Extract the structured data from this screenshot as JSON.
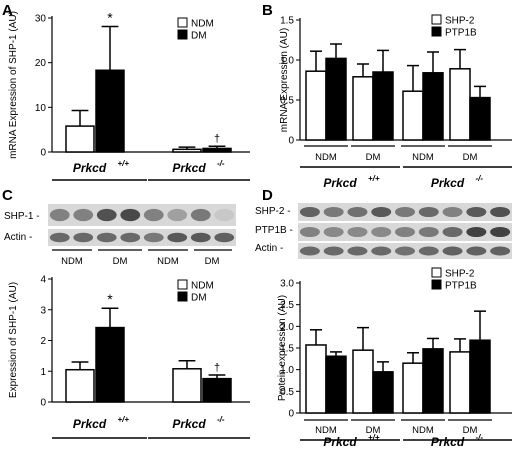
{
  "colors": {
    "ndm": "#ffffff",
    "dm": "#000000",
    "axis": "#000000",
    "blot_bg": "#d8d8d8",
    "band": "#3a3a3a"
  },
  "panel_labels": [
    "A",
    "B",
    "C",
    "D"
  ],
  "genotypes": {
    "wt": "Prkcd",
    "wt_sup": "+/+",
    "ko": "Prkcd",
    "ko_sup": "-/-"
  },
  "blot_C": {
    "rows": [
      "SHP-1 -",
      "Actin -"
    ],
    "lanes": [
      "NDM",
      "DM",
      "NDM",
      "DM"
    ]
  },
  "blot_D": {
    "rows": [
      "SHP-2 -",
      "PTP1B -",
      "Actin -"
    ]
  },
  "chart_data": [
    {
      "panel": "A",
      "type": "bar",
      "ylabel": "mRNA Expression of SHP-1 (AU)",
      "ylim": [
        0,
        30
      ],
      "yticks": [
        "0",
        "10",
        "20",
        "30"
      ],
      "legend": [
        "NDM",
        "DM"
      ],
      "legend_position": "top-right",
      "groups": [
        "Prkcd +/+",
        "Prkcd -/-"
      ],
      "series": [
        {
          "name": "NDM",
          "values": [
            5.8,
            0.6
          ],
          "errors": [
            3.5,
            0.5
          ]
        },
        {
          "name": "DM",
          "values": [
            18.3,
            0.8
          ],
          "errors": [
            9.8,
            0.5
          ]
        }
      ],
      "annotations": [
        {
          "text": "*",
          "group": 0,
          "series": 1
        },
        {
          "text": "†",
          "group": 1,
          "series": 1
        }
      ]
    },
    {
      "panel": "B",
      "type": "bar",
      "ylabel": "mRNA Expression (AU)",
      "ylim": [
        0,
        1.5
      ],
      "yticks": [
        "0",
        "0.5",
        "1.0",
        "1.5"
      ],
      "legend": [
        "SHP-2",
        "PTP1B"
      ],
      "legend_position": "top-right",
      "categories": [
        "NDM",
        "DM",
        "NDM",
        "DM"
      ],
      "groups": [
        "Prkcd +/+",
        "Prkcd -/-"
      ],
      "series": [
        {
          "name": "SHP-2",
          "values": [
            0.86,
            0.79,
            0.61,
            0.89
          ],
          "errors": [
            0.25,
            0.16,
            0.32,
            0.24
          ]
        },
        {
          "name": "PTP1B",
          "values": [
            1.02,
            0.85,
            0.84,
            0.53
          ],
          "errors": [
            0.18,
            0.27,
            0.26,
            0.14
          ]
        }
      ]
    },
    {
      "panel": "C",
      "type": "bar",
      "ylabel": "Expression of SHP-1 (AU)",
      "ylim": [
        0,
        4
      ],
      "yticks": [
        "0",
        "1",
        "2",
        "3",
        "4"
      ],
      "legend": [
        "NDM",
        "DM"
      ],
      "legend_position": "top-right",
      "groups": [
        "Prkcd +/+",
        "Prkcd -/-"
      ],
      "series": [
        {
          "name": "NDM",
          "values": [
            1.05,
            1.08
          ],
          "errors": [
            0.25,
            0.26
          ]
        },
        {
          "name": "DM",
          "values": [
            2.42,
            0.76
          ],
          "errors": [
            0.63,
            0.12
          ]
        }
      ],
      "annotations": [
        {
          "text": "*",
          "group": 0,
          "series": 1
        },
        {
          "text": "†",
          "group": 1,
          "series": 1
        }
      ]
    },
    {
      "panel": "D",
      "type": "bar",
      "ylabel": "Protein expression (AU)",
      "ylim": [
        0,
        3.0
      ],
      "yticks": [
        "0",
        "0.5",
        "1.0",
        "1.5",
        "2.0",
        "2.5",
        "3.0"
      ],
      "legend": [
        "SHP-2",
        "PTP1B"
      ],
      "legend_position": "top-right",
      "categories": [
        "NDM",
        "DM",
        "NDM",
        "DM"
      ],
      "groups": [
        "Prkcd +/+",
        "Prkcd -/-"
      ],
      "series": [
        {
          "name": "SHP-2",
          "values": [
            1.57,
            1.45,
            1.15,
            1.41
          ],
          "errors": [
            0.35,
            0.52,
            0.24,
            0.3
          ]
        },
        {
          "name": "PTP1B",
          "values": [
            1.31,
            0.95,
            1.48,
            1.68
          ],
          "errors": [
            0.1,
            0.23,
            0.24,
            0.67
          ]
        }
      ]
    }
  ]
}
